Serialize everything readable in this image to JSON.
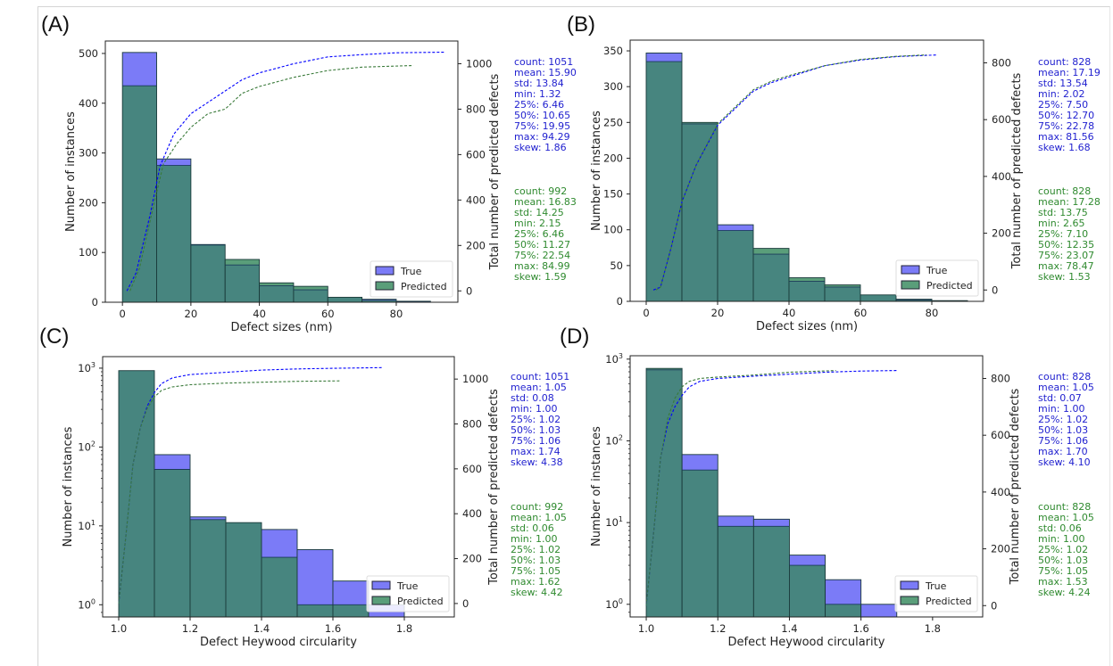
{
  "figure": {
    "colors": {
      "true": "#0000ff",
      "predicted": "#2e8b57",
      "true_fill": "#7b7bf7",
      "predicted_fill": "#5a9e7a",
      "overlap_fill": "#3d7e78",
      "true_text": "#1f1fcf",
      "predicted_text": "#2f8a2f"
    }
  },
  "chart_data": [
    {
      "panel": "(A)",
      "type": "bar",
      "xlabel": "Defect sizes (nm)",
      "ylabel": "Number of instances",
      "y2label": "Total number of predicted defects",
      "yscale": "linear",
      "xlim": [
        -5,
        98
      ],
      "ylim": [
        0,
        525
      ],
      "y2lim": [
        -50,
        1100
      ],
      "xticks": [
        "0",
        "20",
        "40",
        "60",
        "80"
      ],
      "xtick_values": [
        0,
        20,
        40,
        60,
        80
      ],
      "yticks": [
        "0",
        "100",
        "200",
        "300",
        "400",
        "500"
      ],
      "ytick_values": [
        0,
        100,
        200,
        300,
        400,
        500
      ],
      "y2ticks": [
        "0",
        "200",
        "400",
        "600",
        "800",
        "1000"
      ],
      "y2tick_values": [
        0,
        200,
        400,
        600,
        800,
        1000
      ],
      "bin_edges": [
        0,
        10,
        20,
        30,
        40,
        50,
        60,
        70,
        80,
        90
      ],
      "series": [
        {
          "name": "True",
          "values": [
            502,
            288,
            116,
            75,
            33,
            25,
            10,
            6,
            2
          ]
        },
        {
          "name": "Predicted",
          "values": [
            435,
            275,
            115,
            86,
            39,
            32,
            10,
            4,
            1
          ]
        }
      ],
      "cumulative": [
        {
          "name": "True",
          "x": [
            1.3,
            4,
            8,
            11,
            15,
            20,
            25,
            30,
            35,
            40,
            50,
            60,
            70,
            80,
            94.3
          ],
          "y": [
            0,
            80,
            330,
            550,
            690,
            780,
            830,
            880,
            930,
            960,
            1000,
            1030,
            1040,
            1048,
            1051
          ]
        },
        {
          "name": "Predicted",
          "x": [
            2.2,
            5,
            9,
            12,
            16,
            20,
            25,
            30,
            35,
            40,
            50,
            60,
            70,
            85
          ],
          "y": [
            0,
            100,
            370,
            560,
            650,
            720,
            780,
            800,
            870,
            900,
            940,
            970,
            985,
            992
          ]
        }
      ],
      "legend": {
        "entries": [
          "True",
          "Predicted"
        ],
        "position": "lower-right"
      },
      "stats": {
        "true": [
          "count: 1051",
          "mean: 15.90",
          "std: 13.84",
          "min: 1.32",
          "25%: 6.46",
          "50%: 10.65",
          "75%: 19.95",
          "max: 94.29",
          "skew: 1.86"
        ],
        "predicted": [
          "count: 992",
          "mean: 16.83",
          "std: 14.25",
          "min: 2.15",
          "25%: 6.46",
          "50%: 11.27",
          "75%: 22.54",
          "max: 84.99",
          "skew: 1.59"
        ]
      }
    },
    {
      "panel": "(B)",
      "type": "bar",
      "xlabel": "Defect sizes (nm)",
      "ylabel": "Number of instances",
      "y2label": "Total number of predicted defects",
      "yscale": "linear",
      "xlim": [
        -4.5,
        94.5
      ],
      "ylim": [
        0,
        365
      ],
      "y2lim": [
        -40,
        880
      ],
      "xticks": [
        "0",
        "20",
        "40",
        "60",
        "80"
      ],
      "xtick_values": [
        0,
        20,
        40,
        60,
        80
      ],
      "yticks": [
        "0",
        "50",
        "100",
        "150",
        "200",
        "250",
        "300",
        "350"
      ],
      "ytick_values": [
        0,
        50,
        100,
        150,
        200,
        250,
        300,
        350
      ],
      "y2ticks": [
        "0",
        "200",
        "400",
        "600",
        "800"
      ],
      "y2tick_values": [
        0,
        200,
        400,
        600,
        800
      ],
      "bin_edges": [
        0,
        10,
        20,
        30,
        40,
        50,
        60,
        70,
        80,
        90
      ],
      "series": [
        {
          "name": "True",
          "values": [
            347,
            248,
            107,
            66,
            28,
            20,
            9,
            3,
            1
          ]
        },
        {
          "name": "Predicted",
          "values": [
            335,
            250,
            99,
            74,
            33,
            23,
            9,
            2,
            1
          ]
        }
      ],
      "cumulative": [
        {
          "name": "True",
          "x": [
            2.0,
            4,
            7,
            10,
            14,
            20,
            25,
            30,
            35,
            40,
            50,
            60,
            70,
            81.6
          ],
          "y": [
            0,
            10,
            150,
            310,
            440,
            580,
            640,
            700,
            730,
            750,
            790,
            810,
            822,
            828
          ]
        },
        {
          "name": "Predicted",
          "x": [
            2.7,
            4,
            7,
            10,
            14,
            20,
            25,
            30,
            35,
            40,
            50,
            60,
            70,
            78.5
          ],
          "y": [
            0,
            10,
            150,
            310,
            440,
            585,
            645,
            705,
            735,
            755,
            790,
            812,
            823,
            828
          ]
        }
      ],
      "legend": {
        "entries": [
          "True",
          "Predicted"
        ],
        "position": "lower-right"
      },
      "stats": {
        "true": [
          "count: 828",
          "mean: 17.19",
          "std: 13.54",
          "min: 2.02",
          "25%: 7.50",
          "50%: 12.70",
          "75%: 22.78",
          "max: 81.56",
          "skew: 1.68"
        ],
        "predicted": [
          "count: 828",
          "mean: 17.28",
          "std: 13.75",
          "min: 2.65",
          "25%: 7.10",
          "50%: 12.35",
          "75%: 23.07",
          "max: 78.47",
          "skew: 1.53"
        ]
      }
    },
    {
      "panel": "(C)",
      "type": "bar",
      "xlabel": "Defect Heywood circularity",
      "ylabel": "Number of instances",
      "y2label": "Total number of predicted defects",
      "yscale": "log",
      "xlim": [
        0.955,
        1.94
      ],
      "ylim": [
        0.7,
        1400
      ],
      "y2lim": [
        -60,
        1100
      ],
      "xticks": [
        "1.0",
        "1.2",
        "1.4",
        "1.6",
        "1.8"
      ],
      "xtick_values": [
        1.0,
        1.2,
        1.4,
        1.6,
        1.8
      ],
      "yticks": [
        "10^0",
        "10^1",
        "10^2",
        "10^3"
      ],
      "ytick_values": [
        1,
        10,
        100,
        1000
      ],
      "y2ticks": [
        "0",
        "200",
        "400",
        "600",
        "800",
        "1000"
      ],
      "y2tick_values": [
        0,
        200,
        400,
        600,
        800,
        1000
      ],
      "bin_edges": [
        1.0,
        1.1,
        1.2,
        1.3,
        1.4,
        1.5,
        1.6,
        1.7,
        1.8
      ],
      "series": [
        {
          "name": "True",
          "values": [
            930,
            80,
            13,
            11,
            9,
            5,
            2,
            1
          ]
        },
        {
          "name": "Predicted",
          "values": [
            930,
            52,
            12,
            11,
            4,
            1,
            1,
            0
          ]
        }
      ],
      "cumulative": [
        {
          "name": "True",
          "x": [
            1.0,
            1.02,
            1.04,
            1.06,
            1.08,
            1.1,
            1.12,
            1.15,
            1.2,
            1.3,
            1.4,
            1.5,
            1.6,
            1.74
          ],
          "y": [
            0,
            300,
            620,
            780,
            880,
            940,
            980,
            1005,
            1020,
            1030,
            1040,
            1045,
            1048,
            1051
          ]
        },
        {
          "name": "Predicted",
          "x": [
            1.0,
            1.02,
            1.04,
            1.06,
            1.08,
            1.1,
            1.12,
            1.15,
            1.2,
            1.3,
            1.4,
            1.5,
            1.62
          ],
          "y": [
            0,
            300,
            620,
            780,
            870,
            920,
            950,
            965,
            975,
            982,
            986,
            990,
            992
          ]
        }
      ],
      "legend": {
        "entries": [
          "True",
          "Predicted"
        ],
        "position": "lower-right"
      },
      "stats": {
        "true": [
          "count: 1051",
          "mean: 1.05",
          "std: 0.08",
          "min: 1.00",
          "25%: 1.02",
          "50%: 1.03",
          "75%: 1.06",
          "max: 1.74",
          "skew: 4.38"
        ],
        "predicted": [
          "count: 992",
          "mean: 1.05",
          "std: 0.06",
          "min: 1.00",
          "25%: 1.02",
          "50%: 1.03",
          "75%: 1.05",
          "max: 1.62",
          "skew: 4.42"
        ]
      }
    },
    {
      "panel": "(D)",
      "type": "bar",
      "xlabel": "Defect Heywood circularity",
      "ylabel": "Number of instances",
      "y2label": "Total number of predicted defects",
      "yscale": "log",
      "xlim": [
        0.955,
        1.94
      ],
      "ylim": [
        0.7,
        1100
      ],
      "y2lim": [
        -40,
        880
      ],
      "xticks": [
        "1.0",
        "1.2",
        "1.4",
        "1.6",
        "1.8"
      ],
      "xtick_values": [
        1.0,
        1.2,
        1.4,
        1.6,
        1.8
      ],
      "yticks": [
        "10^0",
        "10^1",
        "10^2",
        "10^3"
      ],
      "ytick_values": [
        1,
        10,
        100,
        1000
      ],
      "y2ticks": [
        "0",
        "200",
        "400",
        "600",
        "800"
      ],
      "y2tick_values": [
        0,
        200,
        400,
        600,
        800
      ],
      "bin_edges": [
        1.0,
        1.1,
        1.2,
        1.3,
        1.4,
        1.5,
        1.6,
        1.7
      ],
      "series": [
        {
          "name": "True",
          "values": [
            740,
            68,
            12,
            11,
            4,
            2,
            1
          ]
        },
        {
          "name": "Predicted",
          "values": [
            770,
            44,
            9,
            9,
            3,
            1,
            0
          ]
        }
      ],
      "cumulative": [
        {
          "name": "True",
          "x": [
            1.0,
            1.02,
            1.04,
            1.06,
            1.08,
            1.1,
            1.12,
            1.15,
            1.2,
            1.3,
            1.4,
            1.5,
            1.6,
            1.7
          ],
          "y": [
            0,
            250,
            520,
            640,
            700,
            740,
            770,
            790,
            800,
            808,
            815,
            822,
            826,
            828
          ]
        },
        {
          "name": "Predicted",
          "x": [
            1.0,
            1.02,
            1.04,
            1.06,
            1.08,
            1.1,
            1.12,
            1.15,
            1.2,
            1.3,
            1.4,
            1.53
          ],
          "y": [
            0,
            250,
            520,
            660,
            730,
            770,
            790,
            800,
            805,
            812,
            822,
            828
          ]
        }
      ],
      "legend": {
        "entries": [
          "True",
          "Predicted"
        ],
        "position": "lower-right"
      },
      "stats": {
        "true": [
          "count: 828",
          "mean: 1.05",
          "std: 0.07",
          "min: 1.00",
          "25%: 1.02",
          "50%: 1.03",
          "75%: 1.06",
          "max: 1.70",
          "skew: 4.10"
        ],
        "predicted": [
          "count: 828",
          "mean: 1.05",
          "std: 0.06",
          "min: 1.00",
          "25%: 1.02",
          "50%: 1.03",
          "75%: 1.05",
          "max: 1.53",
          "skew: 4.24"
        ]
      }
    }
  ]
}
